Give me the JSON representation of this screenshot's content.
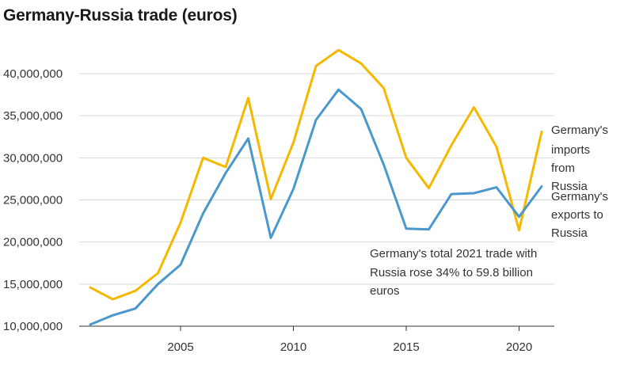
{
  "chart_data": {
    "type": "line",
    "title": "Germany-Russia trade (euros)",
    "x": [
      2001,
      2002,
      2003,
      2004,
      2005,
      2006,
      2007,
      2008,
      2009,
      2010,
      2011,
      2012,
      2013,
      2014,
      2015,
      2016,
      2017,
      2018,
      2019,
      2020,
      2021
    ],
    "series": [
      {
        "name": "Germany's imports from Russia",
        "color": "#f5b800",
        "values": [
          14600000,
          13200000,
          14200000,
          16300000,
          22300000,
          30000000,
          28900000,
          37100000,
          25100000,
          31800000,
          40900000,
          42800000,
          41200000,
          38300000,
          30000000,
          26400000,
          31500000,
          36000000,
          31300000,
          21400000,
          33100000
        ]
      },
      {
        "name": "Germany's exports to Russia",
        "color": "#4a98cc",
        "values": [
          10200000,
          11300000,
          12100000,
          15000000,
          17300000,
          23400000,
          28200000,
          32300000,
          20500000,
          26300000,
          34500000,
          38100000,
          35800000,
          29200000,
          21600000,
          21500000,
          25700000,
          25800000,
          26500000,
          23000000,
          26600000
        ]
      }
    ],
    "series_labels": [
      [
        "Germany's",
        "imports",
        "from",
        "Russia"
      ],
      [
        "Germany's",
        "exports to",
        "Russia"
      ]
    ],
    "yticks": [
      "10,000,000",
      "15,000,000",
      "20,000,000",
      "25,000,000",
      "30,000,000",
      "35,000,000",
      "40,000,000"
    ],
    "ytick_values": [
      10000000,
      15000000,
      20000000,
      25000000,
      30000000,
      35000000,
      40000000
    ],
    "xticks": [
      2005,
      2010,
      2015,
      2020
    ],
    "ylim": [
      10000000,
      43500000
    ],
    "xlim": [
      2000.6,
      2021.6
    ],
    "grid": true,
    "annotation": [
      "Germany's total 2021 trade with",
      "Russia rose 34% to 59.8 billion",
      "euros"
    ]
  }
}
